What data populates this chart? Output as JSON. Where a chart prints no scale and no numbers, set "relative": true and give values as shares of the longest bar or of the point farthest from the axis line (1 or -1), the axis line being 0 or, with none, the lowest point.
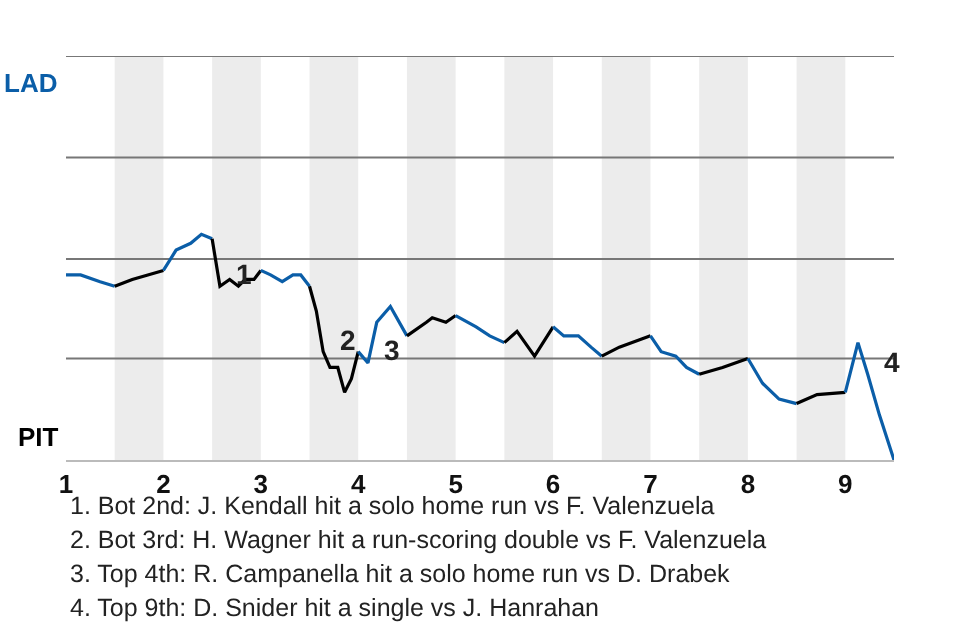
{
  "chart_data": {
    "type": "line",
    "relative": true,
    "series": [
      {
        "color": "#0b5ea8",
        "x": [
          1,
          1.15,
          1.35,
          1.5
        ],
        "values": [
          0.82,
          0.82,
          0.79,
          0.77
        ]
      },
      {
        "color": "#000000",
        "x": [
          1.5,
          1.68,
          1.84,
          2
        ],
        "values": [
          0.77,
          0.8,
          0.82,
          0.84
        ]
      },
      {
        "color": "#0b5ea8",
        "x": [
          2,
          2.13,
          2.28,
          2.39,
          2.5
        ],
        "values": [
          0.84,
          0.93,
          0.96,
          1,
          0.98
        ]
      },
      {
        "color": "#000000",
        "x": [
          2.5,
          2.58,
          2.68,
          2.77,
          2.84,
          2.93,
          3
        ],
        "values": [
          0.98,
          0.77,
          0.8,
          0.77,
          0.8,
          0.8,
          0.84
        ]
      },
      {
        "color": "#0b5ea8",
        "x": [
          3,
          3.1,
          3.22,
          3.33,
          3.41,
          3.5
        ],
        "values": [
          0.84,
          0.82,
          0.79,
          0.82,
          0.82,
          0.77
        ]
      },
      {
        "color": "#000000",
        "x": [
          3.5,
          3.57,
          3.64,
          3.71,
          3.79,
          3.86,
          3.93,
          4
        ],
        "values": [
          0.77,
          0.66,
          0.48,
          0.41,
          0.41,
          0.3,
          0.36,
          0.48
        ]
      },
      {
        "color": "#0b5ea8",
        "x": [
          4,
          4.1,
          4.19,
          4.33,
          4.5
        ],
        "values": [
          0.48,
          0.43,
          0.61,
          0.68,
          0.55
        ]
      },
      {
        "color": "#000000",
        "x": [
          4.5,
          4.7,
          4.76,
          4.9,
          5
        ],
        "values": [
          0.55,
          0.61,
          0.63,
          0.61,
          0.64
        ]
      },
      {
        "color": "#0b5ea8",
        "x": [
          5,
          5.21,
          5.35,
          5.5
        ],
        "values": [
          0.64,
          0.59,
          0.55,
          0.52
        ]
      },
      {
        "color": "#000000",
        "x": [
          5.5,
          5.63,
          5.81,
          6
        ],
        "values": [
          0.52,
          0.57,
          0.46,
          0.59
        ]
      },
      {
        "color": "#0b5ea8",
        "x": [
          6,
          6.11,
          6.26,
          6.39,
          6.5
        ],
        "values": [
          0.59,
          0.55,
          0.55,
          0.5,
          0.46
        ]
      },
      {
        "color": "#000000",
        "x": [
          6.5,
          6.68,
          7
        ],
        "values": [
          0.46,
          0.5,
          0.55
        ]
      },
      {
        "color": "#0b5ea8",
        "x": [
          7,
          7.11,
          7.26,
          7.37,
          7.5
        ],
        "values": [
          0.55,
          0.48,
          0.46,
          0.41,
          0.38
        ]
      },
      {
        "color": "#000000",
        "x": [
          7.5,
          7.74,
          8
        ],
        "values": [
          0.38,
          0.41,
          0.45
        ]
      },
      {
        "color": "#0b5ea8",
        "x": [
          8,
          8.15,
          8.32,
          8.5
        ],
        "values": [
          0.45,
          0.34,
          0.27,
          0.25
        ]
      },
      {
        "color": "#000000",
        "x": [
          8.5,
          8.71,
          9
        ],
        "values": [
          0.25,
          0.29,
          0.3
        ]
      },
      {
        "color": "#0b5ea8",
        "x": [
          9,
          9.13,
          9.23,
          9.35,
          9.5
        ],
        "values": [
          0.3,
          0.52,
          0.38,
          0.2,
          0
        ]
      }
    ],
    "xlim": [
      1,
      9.5
    ],
    "xticks": [
      1,
      2,
      3,
      4,
      5,
      6,
      7,
      8,
      9
    ],
    "ref_lines": [
      {
        "axis": "y",
        "value": 0.45,
        "color": "#777777"
      },
      {
        "axis": "y",
        "value": 0.89,
        "color": "#777777"
      },
      {
        "axis": "y",
        "value": 1.34,
        "color": "#777777"
      },
      {
        "axis": "y",
        "value": 1.79,
        "color": "#777777"
      }
    ],
    "marker": "none",
    "line_style": "solid",
    "bands": [
      {
        "axis": "x",
        "from": 1.5,
        "to": 2,
        "color": "#ececec"
      },
      {
        "axis": "x",
        "from": 2.5,
        "to": 3,
        "color": "#ececec"
      },
      {
        "axis": "x",
        "from": 3.5,
        "to": 4,
        "color": "#ececec"
      },
      {
        "axis": "x",
        "from": 4.5,
        "to": 5,
        "color": "#ececec"
      },
      {
        "axis": "x",
        "from": 5.5,
        "to": 6,
        "color": "#ececec"
      },
      {
        "axis": "x",
        "from": 6.5,
        "to": 7,
        "color": "#ececec"
      },
      {
        "axis": "x",
        "from": 7.5,
        "to": 8,
        "color": "#ececec"
      },
      {
        "axis": "x",
        "from": 8.5,
        "to": 9,
        "color": "#ececec"
      }
    ],
    "annotations": [
      "LAD",
      "PIT",
      {
        "text": "1",
        "x": 2.58,
        "y": 0.77
      },
      {
        "text": "2",
        "x": 3.64,
        "y": 0.48
      },
      {
        "text": "3",
        "x": 4.1,
        "y": 0.43
      },
      {
        "text": "4",
        "x": 9.23,
        "y": 0.38
      },
      "1. Bot 2nd: J. Kendall hit a solo home run vs F. Valenzuela",
      "2. Bot 3rd: H. Wagner hit a run-scoring double vs F. Valenzuela",
      "3. Top 4th: R. Campanella hit a solo home run vs D. Drabek",
      "4. Top 9th: D. Snider hit a single vs J. Hanrahan"
    ]
  }
}
